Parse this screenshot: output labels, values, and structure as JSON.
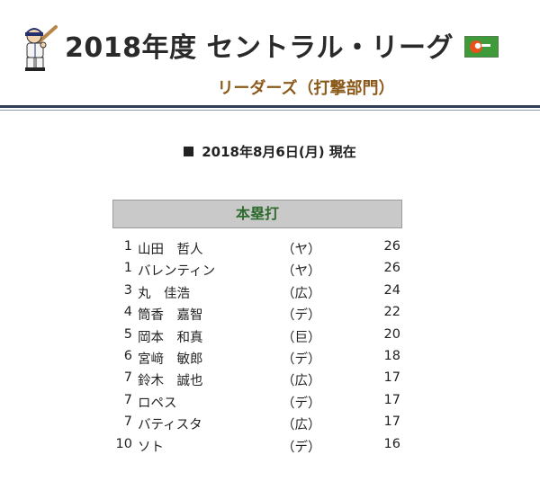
{
  "header": {
    "title": "2018年度 セントラル・リーグ",
    "subtitle": "リーダーズ（打撃部門）",
    "mascot_icon": "baseball-player-icon",
    "flag_icon": "league-flag-icon",
    "flag_color": "#3f9a3a",
    "flag_emblem_color": "#e8501c"
  },
  "as_of": "2018年8月6日(月) 現在",
  "category": "本塁打",
  "leaders": [
    {
      "rank": "1",
      "name": "山田　哲人",
      "team": "（ヤ）",
      "value": "26"
    },
    {
      "rank": "1",
      "name": "バレンティン",
      "team": "（ヤ）",
      "value": "26"
    },
    {
      "rank": "3",
      "name": "丸　佳浩",
      "team": "（広）",
      "value": "24"
    },
    {
      "rank": "4",
      "name": "筒香　嘉智",
      "team": "（デ）",
      "value": "22"
    },
    {
      "rank": "5",
      "name": "岡本　和真",
      "team": "（巨）",
      "value": "20"
    },
    {
      "rank": "6",
      "name": "宮﨑　敏郎",
      "team": "（デ）",
      "value": "18"
    },
    {
      "rank": "7",
      "name": "鈴木　誠也",
      "team": "（広）",
      "value": "17"
    },
    {
      "rank": "7",
      "name": "ロペス",
      "team": "（デ）",
      "value": "17"
    },
    {
      "rank": "7",
      "name": "バティスタ",
      "team": "（広）",
      "value": "17"
    },
    {
      "rank": "10",
      "name": "ソト",
      "team": "（デ）",
      "value": "16"
    }
  ]
}
